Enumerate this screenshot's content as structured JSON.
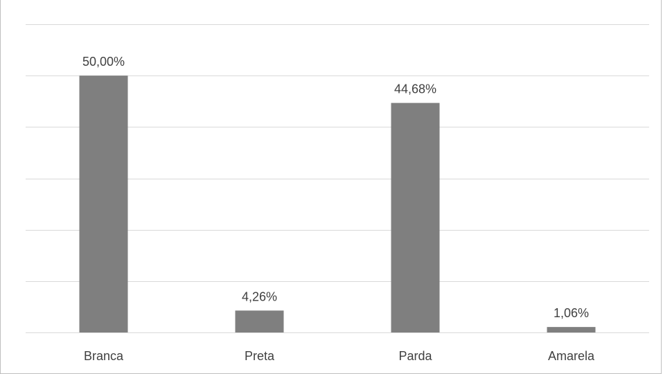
{
  "chart_data": {
    "type": "bar",
    "title": "",
    "categories": [
      "Branca",
      "Preta",
      "Parda",
      "Amarela"
    ],
    "values": [
      50.0,
      4.26,
      44.68,
      1.06
    ],
    "value_labels": [
      "50,00%",
      "4,26%",
      "44,68%",
      "1,06%"
    ],
    "xlabel": "",
    "ylabel": "",
    "ylim": [
      0,
      60
    ],
    "grid": true,
    "legend": "none",
    "y_tick_labels_shown": false,
    "bar_color": "#7f7f7f",
    "gridline_color": "#d9d9d9"
  }
}
